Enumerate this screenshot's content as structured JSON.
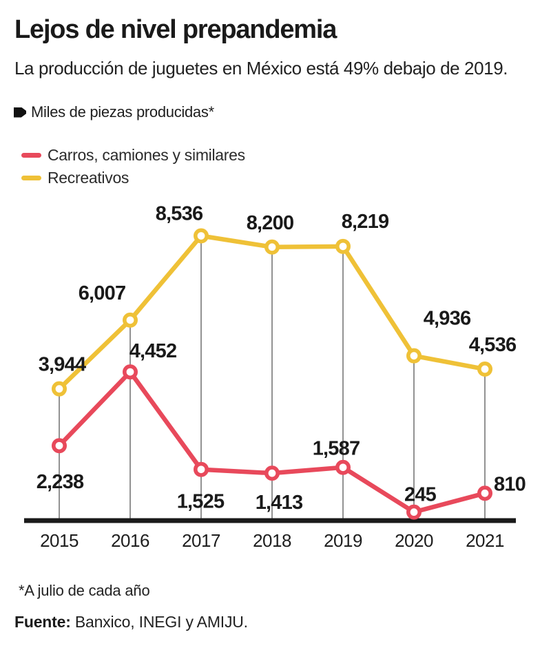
{
  "header": {
    "title": "Lejos de nivel prepandemia",
    "subtitle": "La producción de juguetes en México está 49% debajo de 2019.",
    "unit_label": "Miles de piezas producidas*"
  },
  "legend": [
    {
      "label": "Carros, camiones y similares",
      "color": "#E8495B"
    },
    {
      "label": "Recreativos",
      "color": "#EFC137"
    }
  ],
  "chart_data": {
    "type": "line",
    "categories": [
      "2015",
      "2016",
      "2017",
      "2018",
      "2019",
      "2020",
      "2021"
    ],
    "series": [
      {
        "name": "Carros, camiones y similares",
        "color": "#E8495B",
        "values": [
          2238,
          4452,
          1525,
          1413,
          1587,
          245,
          810
        ],
        "labels": [
          "2,238",
          "4,452",
          "1,525",
          "1,413",
          "1,587",
          "245",
          "810"
        ]
      },
      {
        "name": "Recreativos",
        "color": "#EFC137",
        "values": [
          3944,
          6007,
          8536,
          8200,
          8219,
          4936,
          4536
        ],
        "labels": [
          "3,944",
          "6,007",
          "8,536",
          "8,200",
          "8,219",
          "4,936",
          "4,536"
        ]
      }
    ],
    "ylim": [
      0,
      8536
    ],
    "grid": "vertical-drop-lines",
    "legend_position": "top-left",
    "marker_style": "open-circle",
    "axis_color": "#1A1A1A",
    "drop_line_color": "#4A4A4A",
    "data_label_color": "#1A1A1A",
    "tick_label_color": "#1E1E1E"
  },
  "footer": {
    "footnote": "*A julio de cada año",
    "source_label": "Fuente:",
    "source_text": " Banxico, INEGI y AMIJU."
  }
}
